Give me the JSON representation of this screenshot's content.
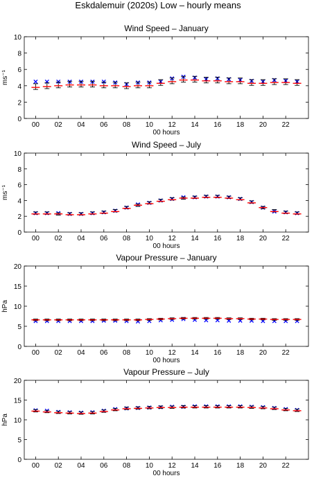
{
  "figure": {
    "title": "Eskdalemuir (2020s) Low – hourly means"
  },
  "chart_data": [
    {
      "type": "scatter",
      "title": "Wind Speed – January",
      "xlabel": "00 hours",
      "ylabel": "ms⁻¹",
      "xlim": [
        -1,
        24
      ],
      "ylim": [
        0,
        10
      ],
      "yticks": [
        0,
        2,
        4,
        6,
        8,
        10
      ],
      "xticks": [
        0,
        2,
        4,
        6,
        8,
        10,
        12,
        14,
        16,
        18,
        20,
        22
      ],
      "xticklabels": [
        "00",
        "02",
        "04",
        "06",
        "08",
        "10",
        "12",
        "14",
        "16",
        "18",
        "20",
        "22"
      ],
      "series": [
        {
          "name": "",
          "kind": "cross",
          "color": "#0000ff",
          "x": [
            0,
            1,
            2,
            3,
            4,
            5,
            6,
            7,
            8,
            9,
            10,
            11,
            12,
            13,
            14,
            15,
            16,
            17,
            18,
            19,
            20,
            21,
            22,
            23
          ],
          "values": [
            4.5,
            4.5,
            4.5,
            4.5,
            4.5,
            4.5,
            4.5,
            4.4,
            4.2,
            4.4,
            4.4,
            4.5,
            4.9,
            5.1,
            5.0,
            4.8,
            4.9,
            4.8,
            4.7,
            4.6,
            4.5,
            4.7,
            4.6,
            4.5
          ]
        },
        {
          "name": "",
          "kind": "errorbar",
          "color": "#000000",
          "x": [
            0,
            1,
            2,
            3,
            4,
            5,
            6,
            7,
            8,
            9,
            10,
            11,
            12,
            13,
            14,
            15,
            16,
            17,
            18,
            19,
            20,
            21,
            22,
            23
          ],
          "values": [
            3.9,
            4.0,
            4.1,
            4.2,
            4.2,
            4.2,
            4.1,
            4.1,
            4.0,
            4.1,
            4.1,
            4.4,
            4.6,
            4.8,
            4.8,
            4.7,
            4.7,
            4.6,
            4.6,
            4.4,
            4.4,
            4.5,
            4.5,
            4.4
          ],
          "err": [
            0.35,
            0.35,
            0.35,
            0.35,
            0.35,
            0.35,
            0.35,
            0.35,
            0.35,
            0.35,
            0.35,
            0.35,
            0.35,
            0.35,
            0.35,
            0.35,
            0.35,
            0.35,
            0.35,
            0.35,
            0.35,
            0.35,
            0.35,
            0.35
          ]
        },
        {
          "name": "",
          "kind": "dash",
          "color": "#ff0000",
          "x": [
            0,
            1,
            2,
            3,
            4,
            5,
            6,
            7,
            8,
            9,
            10,
            11,
            12,
            13,
            14,
            15,
            16,
            17,
            18,
            19,
            20,
            21,
            22,
            23
          ],
          "values": [
            3.8,
            3.9,
            4.0,
            4.1,
            4.1,
            4.1,
            4.0,
            4.0,
            3.9,
            4.0,
            4.0,
            4.3,
            4.5,
            4.7,
            4.7,
            4.6,
            4.6,
            4.5,
            4.5,
            4.3,
            4.3,
            4.4,
            4.4,
            4.3
          ]
        }
      ]
    },
    {
      "type": "scatter",
      "title": "Wind Speed – July",
      "xlabel": "00 hours",
      "ylabel": "ms⁻¹",
      "xlim": [
        -1,
        24
      ],
      "ylim": [
        0,
        10
      ],
      "yticks": [
        0,
        2,
        4,
        6,
        8,
        10
      ],
      "xticks": [
        0,
        2,
        4,
        6,
        8,
        10,
        12,
        14,
        16,
        18,
        20,
        22
      ],
      "xticklabels": [
        "00",
        "02",
        "04",
        "06",
        "08",
        "10",
        "12",
        "14",
        "16",
        "18",
        "20",
        "22"
      ],
      "series": [
        {
          "name": "",
          "kind": "cross",
          "color": "#0000ff",
          "x": [
            0,
            1,
            2,
            3,
            4,
            5,
            6,
            7,
            8,
            9,
            10,
            11,
            12,
            13,
            14,
            15,
            16,
            17,
            18,
            19,
            20,
            21,
            22,
            23
          ],
          "values": [
            2.4,
            2.4,
            2.4,
            2.3,
            2.3,
            2.4,
            2.5,
            2.7,
            3.1,
            3.5,
            3.7,
            4.0,
            4.2,
            4.4,
            4.4,
            4.5,
            4.5,
            4.4,
            4.2,
            3.8,
            3.1,
            2.6,
            2.5,
            2.4
          ]
        },
        {
          "name": "",
          "kind": "errorbar",
          "color": "#000000",
          "x": [
            0,
            1,
            2,
            3,
            4,
            5,
            6,
            7,
            8,
            9,
            10,
            11,
            12,
            13,
            14,
            15,
            16,
            17,
            18,
            19,
            20,
            21,
            22,
            23
          ],
          "values": [
            2.4,
            2.4,
            2.3,
            2.3,
            2.3,
            2.4,
            2.5,
            2.7,
            3.1,
            3.4,
            3.7,
            4.0,
            4.2,
            4.3,
            4.4,
            4.5,
            4.5,
            4.4,
            4.2,
            3.8,
            3.1,
            2.7,
            2.5,
            2.4
          ],
          "err": [
            0.15,
            0.15,
            0.15,
            0.15,
            0.15,
            0.15,
            0.15,
            0.15,
            0.15,
            0.15,
            0.15,
            0.15,
            0.15,
            0.15,
            0.15,
            0.15,
            0.15,
            0.15,
            0.15,
            0.15,
            0.15,
            0.15,
            0.15,
            0.15
          ]
        },
        {
          "name": "",
          "kind": "dash",
          "color": "#ff0000",
          "x": [
            0,
            1,
            2,
            3,
            4,
            5,
            6,
            7,
            8,
            9,
            10,
            11,
            12,
            13,
            14,
            15,
            16,
            17,
            18,
            19,
            20,
            21,
            22,
            23
          ],
          "values": [
            2.3,
            2.3,
            2.3,
            2.2,
            2.2,
            2.3,
            2.4,
            2.6,
            3.0,
            3.4,
            3.6,
            3.9,
            4.1,
            4.3,
            4.3,
            4.4,
            4.4,
            4.3,
            4.1,
            3.7,
            3.1,
            2.6,
            2.4,
            2.3
          ]
        }
      ]
    },
    {
      "type": "scatter",
      "title": "Vapour Pressure – January",
      "xlabel": "00 hours",
      "ylabel": "hPa",
      "xlim": [
        -1,
        24
      ],
      "ylim": [
        0,
        20
      ],
      "yticks": [
        0,
        5,
        10,
        15,
        20
      ],
      "xticks": [
        0,
        2,
        4,
        6,
        8,
        10,
        12,
        14,
        16,
        18,
        20,
        22
      ],
      "xticklabels": [
        "00",
        "02",
        "04",
        "06",
        "08",
        "10",
        "12",
        "14",
        "16",
        "18",
        "20",
        "22"
      ],
      "series": [
        {
          "name": "",
          "kind": "cross",
          "color": "#0000ff",
          "x": [
            0,
            1,
            2,
            3,
            4,
            5,
            6,
            7,
            8,
            9,
            10,
            11,
            12,
            13,
            14,
            15,
            16,
            17,
            18,
            19,
            20,
            21,
            22,
            23
          ],
          "values": [
            6.3,
            6.3,
            6.3,
            6.3,
            6.3,
            6.3,
            6.4,
            6.4,
            6.3,
            6.2,
            6.3,
            6.5,
            6.6,
            6.8,
            6.6,
            6.5,
            6.5,
            6.4,
            6.4,
            6.4,
            6.3,
            6.3,
            6.3,
            6.3
          ]
        },
        {
          "name": "",
          "kind": "errorbar",
          "color": "#000000",
          "x": [
            0,
            1,
            2,
            3,
            4,
            5,
            6,
            7,
            8,
            9,
            10,
            11,
            12,
            13,
            14,
            15,
            16,
            17,
            18,
            19,
            20,
            21,
            22,
            23
          ],
          "values": [
            6.6,
            6.6,
            6.6,
            6.6,
            6.6,
            6.6,
            6.6,
            6.6,
            6.6,
            6.6,
            6.7,
            6.8,
            6.9,
            7.0,
            7.0,
            7.0,
            7.0,
            6.9,
            6.9,
            6.8,
            6.8,
            6.7,
            6.7,
            6.7
          ],
          "err": [
            0.2,
            0.2,
            0.2,
            0.2,
            0.2,
            0.2,
            0.2,
            0.2,
            0.2,
            0.2,
            0.2,
            0.2,
            0.2,
            0.2,
            0.2,
            0.2,
            0.2,
            0.2,
            0.2,
            0.2,
            0.2,
            0.2,
            0.2,
            0.2
          ]
        },
        {
          "name": "",
          "kind": "dash",
          "color": "#ff0000",
          "x": [
            0,
            1,
            2,
            3,
            4,
            5,
            6,
            7,
            8,
            9,
            10,
            11,
            12,
            13,
            14,
            15,
            16,
            17,
            18,
            19,
            20,
            21,
            22,
            23
          ],
          "values": [
            6.6,
            6.6,
            6.6,
            6.6,
            6.6,
            6.6,
            6.6,
            6.6,
            6.6,
            6.6,
            6.7,
            6.8,
            6.9,
            7.0,
            7.0,
            7.0,
            7.0,
            6.9,
            6.9,
            6.8,
            6.8,
            6.7,
            6.7,
            6.7
          ]
        }
      ]
    },
    {
      "type": "scatter",
      "title": "Vapour Pressure – July",
      "xlabel": "00 hours",
      "ylabel": "hPa",
      "xlim": [
        -1,
        24
      ],
      "ylim": [
        0,
        20
      ],
      "yticks": [
        0,
        5,
        10,
        15,
        20
      ],
      "xticks": [
        0,
        2,
        4,
        6,
        8,
        10,
        12,
        14,
        16,
        18,
        20,
        22
      ],
      "xticklabels": [
        "00",
        "02",
        "04",
        "06",
        "08",
        "10",
        "12",
        "14",
        "16",
        "18",
        "20",
        "22"
      ],
      "series": [
        {
          "name": "",
          "kind": "cross",
          "color": "#0000ff",
          "x": [
            0,
            1,
            2,
            3,
            4,
            5,
            6,
            7,
            8,
            9,
            10,
            11,
            12,
            13,
            14,
            15,
            16,
            17,
            18,
            19,
            20,
            21,
            22,
            23
          ],
          "values": [
            12.4,
            12.3,
            12.0,
            11.9,
            11.8,
            11.9,
            12.3,
            12.7,
            12.9,
            13.0,
            13.1,
            13.2,
            13.3,
            13.3,
            13.4,
            13.4,
            13.4,
            13.4,
            13.4,
            13.3,
            13.2,
            13.0,
            12.7,
            12.5
          ]
        },
        {
          "name": "",
          "kind": "errorbar",
          "color": "#000000",
          "x": [
            0,
            1,
            2,
            3,
            4,
            5,
            6,
            7,
            8,
            9,
            10,
            11,
            12,
            13,
            14,
            15,
            16,
            17,
            18,
            19,
            20,
            21,
            22,
            23
          ],
          "values": [
            12.3,
            12.1,
            11.9,
            11.8,
            11.7,
            11.8,
            12.2,
            12.6,
            12.9,
            13.0,
            13.1,
            13.2,
            13.2,
            13.3,
            13.3,
            13.3,
            13.3,
            13.3,
            13.3,
            13.2,
            13.1,
            12.9,
            12.6,
            12.4
          ],
          "err": [
            0.3,
            0.3,
            0.3,
            0.3,
            0.3,
            0.3,
            0.3,
            0.3,
            0.3,
            0.3,
            0.3,
            0.3,
            0.3,
            0.3,
            0.3,
            0.3,
            0.3,
            0.3,
            0.3,
            0.3,
            0.3,
            0.3,
            0.3,
            0.3
          ]
        },
        {
          "name": "",
          "kind": "dash",
          "color": "#ff0000",
          "x": [
            0,
            1,
            2,
            3,
            4,
            5,
            6,
            7,
            8,
            9,
            10,
            11,
            12,
            13,
            14,
            15,
            16,
            17,
            18,
            19,
            20,
            21,
            22,
            23
          ],
          "values": [
            12.2,
            12.0,
            11.8,
            11.7,
            11.6,
            11.7,
            12.1,
            12.5,
            12.8,
            12.9,
            13.0,
            13.1,
            13.1,
            13.2,
            13.2,
            13.2,
            13.2,
            13.2,
            13.2,
            13.1,
            13.0,
            12.8,
            12.5,
            12.3
          ]
        }
      ]
    }
  ]
}
